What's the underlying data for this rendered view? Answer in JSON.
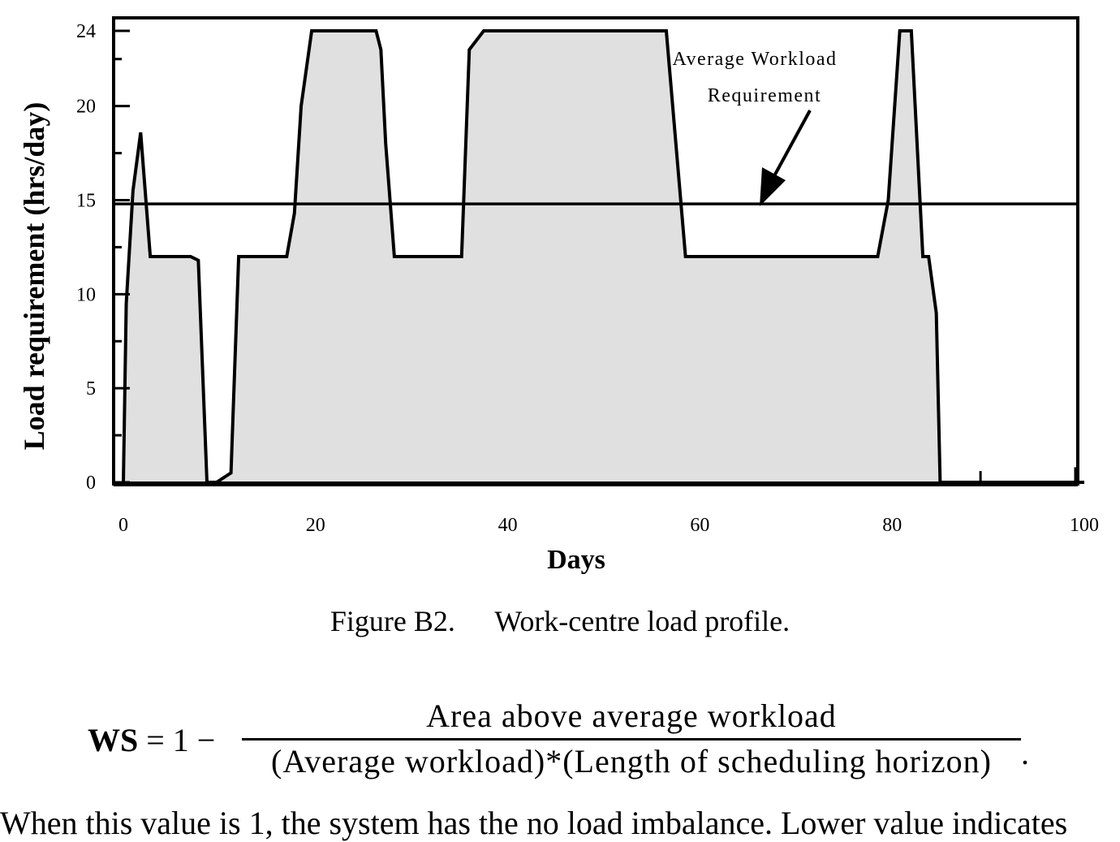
{
  "chart_data": {
    "type": "area",
    "xlabel": "Days",
    "ylabel": "Load requirement (hrs/day)",
    "xlim": [
      0,
      100
    ],
    "ylim": [
      0,
      24
    ],
    "x_ticks": [
      "0",
      "20",
      "40",
      "60",
      "80",
      "100"
    ],
    "y_ticks": [
      "0",
      "5",
      "10",
      "15",
      "20",
      "24"
    ],
    "x": [
      0,
      0.3,
      1,
      1.8,
      2.8,
      7,
      7.8,
      8.7,
      9.7,
      11.2,
      12,
      17,
      17.8,
      18.5,
      19.6,
      26.3,
      26.8,
      27.3,
      28.2,
      35.2,
      36,
      37.5,
      56.5,
      57.5,
      58.5,
      78.5,
      79.6,
      80.8,
      82,
      82.7,
      83.2,
      83.8,
      84.6,
      85,
      85.5,
      100
    ],
    "values": [
      0,
      9.5,
      15.5,
      18.6,
      12.0,
      12.0,
      11.8,
      0,
      0,
      0.5,
      12.0,
      12.0,
      14.3,
      20.0,
      24.0,
      24.0,
      23.0,
      18.0,
      12.0,
      12.0,
      23.0,
      24.0,
      24.0,
      18.0,
      12.0,
      12.0,
      15.0,
      24.0,
      24.0,
      17.0,
      12.0,
      12.0,
      9.0,
      0,
      0,
      0
    ],
    "reference_line": {
      "value": 14.8
    },
    "annotation": {
      "line1": "Average Workload",
      "line2": "Requirement"
    },
    "fill_color": "#e0e0e0",
    "line_color": "#000000",
    "grid": false
  },
  "caption": {
    "number": "Figure B2.",
    "text": "Work-centre load profile."
  },
  "formula": {
    "lhs": "WS",
    "equals": " = 1 − ",
    "numerator": "Area above average workload",
    "denominator": "(Average workload)*(Length of scheduling horizon)",
    "end": "."
  },
  "bottom_text": "When this value is 1, the system has the no load imbalance. Lower value indicates"
}
